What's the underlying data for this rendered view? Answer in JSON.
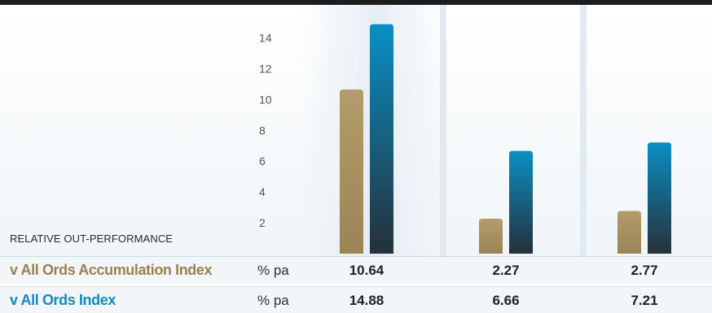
{
  "colors": {
    "accumulation": "#9b8455",
    "accumulation_top": "#b39c6c",
    "index": "#0a8fc4",
    "index_bottom": "#26303a",
    "label_accumulation": "#9b8052",
    "label_index": "#1489c2"
  },
  "section_label": "RELATIVE OUT-PERFORMANCE",
  "rows": [
    {
      "label": "v All Ords Accumulation Index",
      "unit": "% pa",
      "values": [
        "10.64",
        "2.27",
        "2.77"
      ]
    },
    {
      "label": "v All Ords Index",
      "unit": "% pa",
      "values": [
        "14.88",
        "6.66",
        "7.21"
      ]
    }
  ],
  "chart_data": {
    "type": "bar",
    "categories": [
      "",
      "",
      ""
    ],
    "series": [
      {
        "name": "v All Ords Accumulation Index",
        "values": [
          10.64,
          2.27,
          2.77
        ]
      },
      {
        "name": "v All Ords Index",
        "values": [
          14.88,
          6.66,
          7.21
        ]
      }
    ],
    "yticks": [
      2,
      4,
      6,
      8,
      10,
      12,
      14
    ],
    "ylim": [
      0,
      15.5
    ],
    "grid": false,
    "legend": "none"
  }
}
